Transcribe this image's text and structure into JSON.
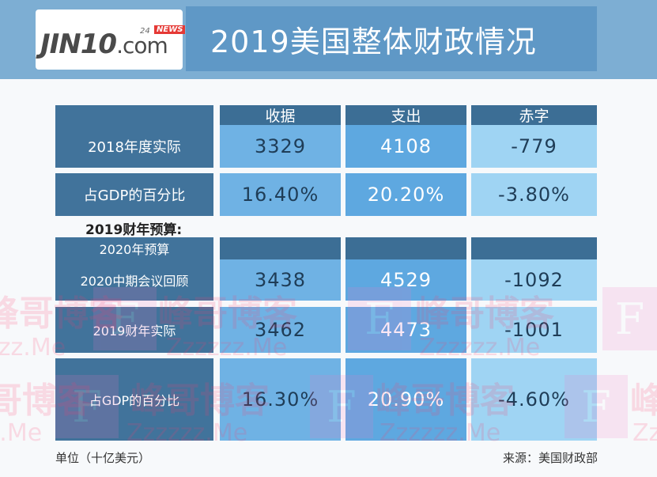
{
  "header": {
    "logo": {
      "brand": "JIN10",
      "domain": ".com",
      "badge_24": "24",
      "badge_news": "NEWS"
    },
    "title": "2019美国整体财政情况"
  },
  "table": {
    "columns": [
      "收据",
      "支出",
      "赤字"
    ],
    "rows": [
      {
        "label": "2018年度实际",
        "values": [
          "3329",
          "4108",
          "-779"
        ]
      },
      {
        "label": "占GDP的百分比",
        "values": [
          "16.40%",
          "20.20%",
          "-3.80%"
        ]
      }
    ],
    "section_title": "2019财年预算:",
    "subheader": "2020年预算",
    "section_rows": [
      {
        "label": "2020中期会议回顾",
        "values": [
          "3438",
          "4529",
          "-1092"
        ]
      },
      {
        "label": "2019财年实际",
        "values": [
          "3462",
          "4473",
          "-1001"
        ]
      },
      {
        "label": "占GDP的百分比",
        "values": [
          "16.30%",
          "20.90%",
          "-4.60%"
        ]
      }
    ]
  },
  "footer": {
    "unit": "单位（十亿美元）",
    "source": "来源：美国财政部"
  },
  "watermark": {
    "text_cn": "峰哥博客",
    "text_en": "Zzzzzz.Me",
    "letter": "F"
  },
  "colors": {
    "header_bg": "#7daed3",
    "header_band": "#5f98c6",
    "label_bg": "#41739b",
    "column_header_bg": "#3c6e95",
    "col1_bg": "#6fb2e4",
    "col2_bg": "#5ea8e0",
    "col3_bg": "#9fd4f3",
    "watermark": "#ff3b6b"
  }
}
